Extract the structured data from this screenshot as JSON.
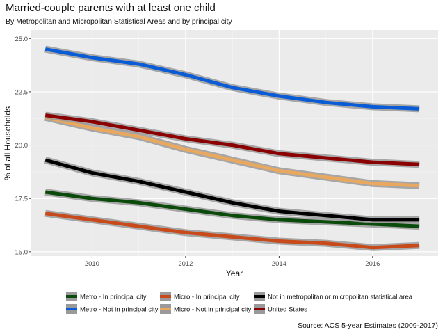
{
  "chart_data": {
    "type": "line",
    "title": "Married-couple parents with at least one child",
    "subtitle": "By Metropolitan and Micropolitan Statistical Areas and by principal city",
    "xlabel": "Year",
    "ylabel": "% of all Households",
    "source": "Source: ACS 5-year Estimates (2009-2017)",
    "xlim": [
      2008.7,
      2017.4
    ],
    "ylim": [
      14.8,
      25.4
    ],
    "x_ticks": [
      2010,
      2012,
      2014,
      2016
    ],
    "y_ticks": [
      15.0,
      17.5,
      20.0,
      22.5,
      25.0
    ],
    "y_tick_labels": [
      "15.0",
      "17.5",
      "20.0",
      "22.5",
      "25.0"
    ],
    "grid": true,
    "background": "#ebebeb",
    "legend_position": "bottom",
    "x": [
      2009,
      2010,
      2011,
      2012,
      2013,
      2014,
      2015,
      2016,
      2017
    ],
    "series": [
      {
        "name": "Metro - In principal city",
        "color": "#0a4a0a",
        "values": [
          17.8,
          17.5,
          17.3,
          17.0,
          16.7,
          16.5,
          16.4,
          16.3,
          16.2
        ]
      },
      {
        "name": "Metro - Not in principal city",
        "color": "#0a5cd6",
        "values": [
          24.5,
          24.1,
          23.8,
          23.3,
          22.7,
          22.3,
          22.0,
          21.8,
          21.7
        ]
      },
      {
        "name": "Micro - In principal city",
        "color": "#c84a1a",
        "values": [
          16.8,
          16.5,
          16.2,
          15.9,
          15.7,
          15.5,
          15.4,
          15.2,
          15.3
        ]
      },
      {
        "name": "Micro - Not in principal city",
        "color": "#e8a860",
        "values": [
          21.3,
          20.8,
          20.4,
          19.8,
          19.3,
          18.8,
          18.5,
          18.2,
          18.1
        ]
      },
      {
        "name": "Not in metropolitan or micropolitan statistical area",
        "color": "#000000",
        "values": [
          19.3,
          18.7,
          18.3,
          17.8,
          17.3,
          16.9,
          16.7,
          16.5,
          16.5
        ]
      },
      {
        "name": "United States",
        "color": "#8b0000",
        "values": [
          21.4,
          21.1,
          20.7,
          20.3,
          20.0,
          19.6,
          19.4,
          19.2,
          19.1
        ]
      }
    ]
  }
}
